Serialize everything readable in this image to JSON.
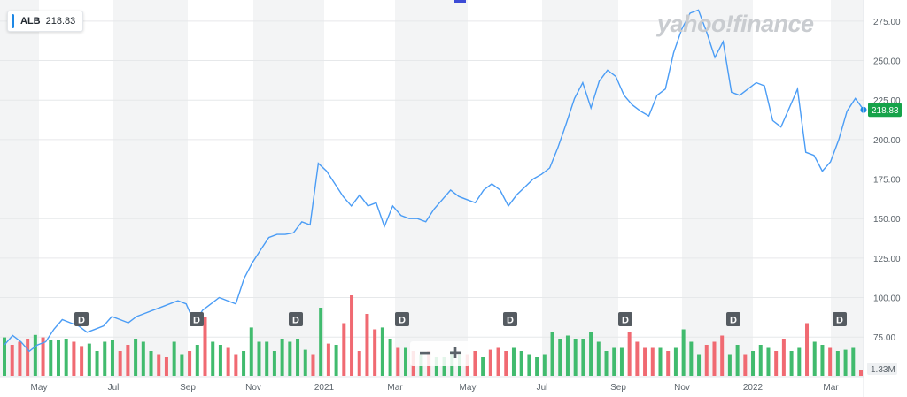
{
  "legend": {
    "symbol": "ALB",
    "value": "218.83"
  },
  "watermark": "yahoo!finance",
  "zoom": {
    "minus": "−",
    "plus": "+"
  },
  "colors": {
    "line": "#4a9cf5",
    "up": "#41bb6e",
    "down": "#f06a72",
    "price_tag": "#16a34a",
    "dividend": "#555b61"
  },
  "chart_data": {
    "type": "line",
    "ticker": "ALB",
    "last_price": 218.83,
    "last_price_label": "218.83",
    "y_axis": {
      "ticks": [
        "75.00",
        "100.00",
        "125.00",
        "150.00",
        "175.00",
        "200.00",
        "225.00",
        "250.00",
        "275.00"
      ],
      "ylim": [
        60,
        285
      ],
      "side": "right"
    },
    "x_axis": {
      "labels": [
        "May",
        "Jul",
        "Sep",
        "Nov",
        "2021",
        "Mar",
        "May",
        "Jul",
        "Sep",
        "Nov",
        "2022",
        "Mar"
      ]
    },
    "grid": true,
    "series": [
      {
        "values": [
          70,
          76,
          72,
          66,
          70,
          72,
          80,
          86,
          84,
          82,
          78,
          80,
          82,
          88,
          86,
          84,
          88,
          90,
          92,
          94,
          96,
          98,
          96,
          84,
          92,
          96,
          100,
          98,
          96,
          112,
          122,
          130,
          138,
          140,
          140,
          141,
          148,
          146,
          185,
          180,
          172,
          164,
          158,
          165,
          158,
          160,
          145,
          158,
          152,
          150,
          150,
          148,
          156,
          162,
          168,
          164,
          162,
          160,
          168,
          172,
          168,
          158,
          165,
          170,
          175,
          178,
          182,
          195,
          210,
          226,
          236,
          220,
          237,
          244,
          240,
          228,
          222,
          218,
          215,
          228,
          232,
          255,
          270,
          280,
          282,
          268,
          252,
          262,
          230,
          228,
          232,
          236,
          234,
          212,
          208,
          220,
          232,
          192,
          190,
          180,
          186,
          200,
          218,
          226,
          218.83
        ]
      }
    ],
    "volume": {
      "label": "1.33M",
      "bars": [
        {
          "v": 0.62,
          "up": true
        },
        {
          "v": 0.5,
          "up": false
        },
        {
          "v": 0.55,
          "up": false
        },
        {
          "v": 0.6,
          "up": false
        },
        {
          "v": 0.66,
          "up": true
        },
        {
          "v": 0.62,
          "up": false
        },
        {
          "v": 0.58,
          "up": true
        },
        {
          "v": 0.58,
          "up": true
        },
        {
          "v": 0.6,
          "up": true
        },
        {
          "v": 0.55,
          "up": false
        },
        {
          "v": 0.48,
          "up": false
        },
        {
          "v": 0.52,
          "up": true
        },
        {
          "v": 0.4,
          "up": true
        },
        {
          "v": 0.55,
          "up": true
        },
        {
          "v": 0.58,
          "up": true
        },
        {
          "v": 0.4,
          "up": false
        },
        {
          "v": 0.5,
          "up": false
        },
        {
          "v": 0.6,
          "up": true
        },
        {
          "v": 0.55,
          "up": true
        },
        {
          "v": 0.4,
          "up": true
        },
        {
          "v": 0.35,
          "up": false
        },
        {
          "v": 0.3,
          "up": false
        },
        {
          "v": 0.55,
          "up": true
        },
        {
          "v": 0.35,
          "up": true
        },
        {
          "v": 0.4,
          "up": false
        },
        {
          "v": 0.5,
          "up": true
        },
        {
          "v": 0.95,
          "up": false
        },
        {
          "v": 0.55,
          "up": true
        },
        {
          "v": 0.5,
          "up": true
        },
        {
          "v": 0.45,
          "up": false
        },
        {
          "v": 0.35,
          "up": false
        },
        {
          "v": 0.4,
          "up": true
        },
        {
          "v": 0.78,
          "up": true
        },
        {
          "v": 0.55,
          "up": true
        },
        {
          "v": 0.55,
          "up": true
        },
        {
          "v": 0.4,
          "up": true
        },
        {
          "v": 0.6,
          "up": true
        },
        {
          "v": 0.55,
          "up": true
        },
        {
          "v": 0.6,
          "up": true
        },
        {
          "v": 0.42,
          "up": true
        },
        {
          "v": 0.35,
          "up": false
        },
        {
          "v": 1.1,
          "up": true
        },
        {
          "v": 0.52,
          "up": false
        },
        {
          "v": 0.5,
          "up": true
        },
        {
          "v": 0.85,
          "up": false
        },
        {
          "v": 1.3,
          "up": false
        },
        {
          "v": 0.4,
          "up": false
        },
        {
          "v": 1.0,
          "up": false
        },
        {
          "v": 0.75,
          "up": false
        },
        {
          "v": 0.78,
          "up": true
        },
        {
          "v": 0.6,
          "up": true
        },
        {
          "v": 0.45,
          "up": false
        },
        {
          "v": 0.45,
          "up": true
        },
        {
          "v": 0.4,
          "up": false
        },
        {
          "v": 0.35,
          "up": true
        },
        {
          "v": 0.4,
          "up": false
        },
        {
          "v": 0.3,
          "up": true
        },
        {
          "v": 0.3,
          "up": true
        },
        {
          "v": 0.4,
          "up": true
        },
        {
          "v": 0.35,
          "up": true
        },
        {
          "v": 0.35,
          "up": false
        },
        {
          "v": 0.4,
          "up": false
        },
        {
          "v": 0.3,
          "up": true
        },
        {
          "v": 0.42,
          "up": false
        },
        {
          "v": 0.45,
          "up": false
        },
        {
          "v": 0.4,
          "up": false
        },
        {
          "v": 0.45,
          "up": true
        },
        {
          "v": 0.4,
          "up": true
        },
        {
          "v": 0.35,
          "up": true
        },
        {
          "v": 0.3,
          "up": true
        },
        {
          "v": 0.35,
          "up": true
        },
        {
          "v": 0.7,
          "up": true
        },
        {
          "v": 0.6,
          "up": true
        },
        {
          "v": 0.65,
          "up": true
        },
        {
          "v": 0.6,
          "up": true
        },
        {
          "v": 0.6,
          "up": true
        },
        {
          "v": 0.7,
          "up": true
        },
        {
          "v": 0.55,
          "up": true
        },
        {
          "v": 0.4,
          "up": true
        },
        {
          "v": 0.45,
          "up": true
        },
        {
          "v": 0.45,
          "up": true
        },
        {
          "v": 0.7,
          "up": false
        },
        {
          "v": 0.55,
          "up": false
        },
        {
          "v": 0.45,
          "up": false
        },
        {
          "v": 0.45,
          "up": false
        },
        {
          "v": 0.45,
          "up": true
        },
        {
          "v": 0.4,
          "up": false
        },
        {
          "v": 0.45,
          "up": true
        },
        {
          "v": 0.75,
          "up": true
        },
        {
          "v": 0.55,
          "up": true
        },
        {
          "v": 0.35,
          "up": true
        },
        {
          "v": 0.5,
          "up": false
        },
        {
          "v": 0.55,
          "up": false
        },
        {
          "v": 0.65,
          "up": false
        },
        {
          "v": 0.35,
          "up": true
        },
        {
          "v": 0.5,
          "up": true
        },
        {
          "v": 0.35,
          "up": false
        },
        {
          "v": 0.4,
          "up": true
        },
        {
          "v": 0.5,
          "up": true
        },
        {
          "v": 0.45,
          "up": true
        },
        {
          "v": 0.4,
          "up": false
        },
        {
          "v": 0.6,
          "up": false
        },
        {
          "v": 0.4,
          "up": true
        },
        {
          "v": 0.45,
          "up": true
        },
        {
          "v": 0.85,
          "up": false
        },
        {
          "v": 0.55,
          "up": true
        },
        {
          "v": 0.5,
          "up": true
        },
        {
          "v": 0.45,
          "up": false
        },
        {
          "v": 0.4,
          "up": true
        },
        {
          "v": 0.42,
          "up": true
        },
        {
          "v": 0.45,
          "up": true
        },
        {
          "v": 0.1,
          "up": false
        }
      ]
    },
    "dividends": {
      "marker": "D",
      "count": 8
    }
  }
}
